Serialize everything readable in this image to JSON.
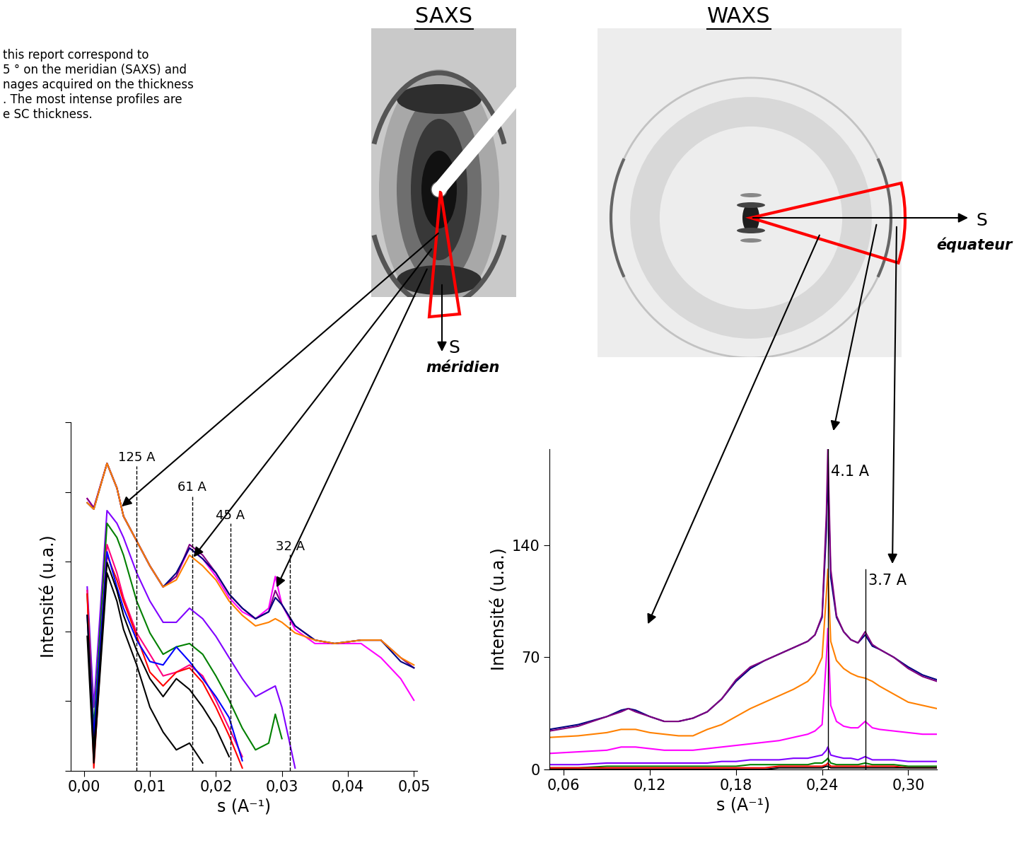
{
  "note": {
    "lines": [
      "this report correspond to",
      "5 ° on the meridian (SAXS) and",
      "nages acquired on the thickness",
      ". The most intense profiles are",
      "e SC thickness."
    ]
  },
  "chart_data": [
    {
      "type": "line",
      "title": "SAXS",
      "direction": {
        "symbol": "S",
        "label": "méridien"
      },
      "xlabel": "s (A⁻¹)",
      "ylabel": "Intensité (u.a.)",
      "log": "y",
      "tick_labels": "x",
      "grid": false,
      "xlim": [
        -0.002,
        0.0505
      ],
      "ylim": [
        1,
        100000
      ],
      "xticks": [
        {
          "value": 0,
          "label": "0,00"
        },
        {
          "value": 0.01,
          "label": "0,01"
        },
        {
          "value": 0.02,
          "label": "0,02"
        },
        {
          "value": 0.03,
          "label": "0,03"
        },
        {
          "value": 0.04,
          "label": "0,04"
        },
        {
          "value": 0.05,
          "label": "0,05"
        }
      ],
      "yticks": [
        1,
        10,
        100,
        1000,
        10000,
        100000
      ],
      "annotations": [
        {
          "text": "125 A",
          "x": 0.008,
          "line_style": "dashed"
        },
        {
          "text": "61 A",
          "x": 0.0164,
          "line_style": "dashed"
        },
        {
          "text": "45 A",
          "x": 0.0222,
          "line_style": "dashed"
        },
        {
          "text": "32 A",
          "x": 0.03125,
          "line_style": "dashed"
        }
      ],
      "x": [
        0.0005,
        0.0015,
        0.0035,
        0.005,
        0.006,
        0.008,
        0.01,
        0.012,
        0.014,
        0.016,
        0.018,
        0.02,
        0.022,
        0.024,
        0.026,
        0.028,
        0.029,
        0.03,
        0.032,
        0.035,
        0.038,
        0.042,
        0.045,
        0.048,
        0.05
      ],
      "series": [
        {
          "color": "#ff00ff",
          "values": [
            8030,
            5930,
            25700,
            11400,
            4480,
            1980,
            870,
            434,
            615,
            1570,
            1100,
            615,
            305,
            191,
            152,
            215,
            615,
            242,
            107,
            67,
            67,
            67,
            42,
            21,
            10.3
          ]
        },
        {
          "color": "#800080",
          "values": [
            8030,
            5930,
            25700,
            11400,
            4480,
            1980,
            870,
            434,
            615,
            1760,
            1240,
            690,
            343,
            215,
            152,
            191,
            386,
            242,
            120,
            75,
            67,
            75,
            75,
            42,
            30
          ]
        },
        {
          "color": "#000080",
          "values": [
            7000,
            5660,
            25700,
            11400,
            4480,
            1980,
            870,
            434,
            690,
            1570,
            1100,
            690,
            343,
            215,
            152,
            191,
            305,
            242,
            120,
            75,
            67,
            75,
            75,
            37,
            30
          ]
        },
        {
          "color": "#ff8000",
          "values": [
            7000,
            5660,
            25700,
            11400,
            4480,
            1980,
            870,
            434,
            547,
            1240,
            870,
            547,
            272,
            170,
            120,
            135,
            152,
            135,
            95,
            75,
            67,
            75,
            75,
            42,
            33
          ]
        },
        {
          "color": "#8000ff",
          "values": [
            434,
            8.2,
            5400,
            3550,
            2220,
            690,
            272,
            135,
            135,
            215,
            152,
            85,
            42,
            21,
            11.6,
            14.7,
            16.5,
            8.2,
            1.1,
            null,
            null,
            null,
            null,
            null,
            null
          ]
        },
        {
          "color": "#008000",
          "values": [
            343,
            4.1,
            3550,
            2220,
            1240,
            272,
            95,
            47,
            60,
            67,
            47,
            23,
            10.3,
            4.1,
            2.0,
            2.5,
            6.5,
            2.9,
            null,
            null,
            null,
            null,
            null,
            null,
            null
          ]
        },
        {
          "color": "#ff0080",
          "values": [
            386,
            2.5,
            1760,
            690,
            305,
            95,
            47,
            23,
            26,
            33,
            23,
            10.3,
            4.1,
            1.6,
            null,
            null,
            null,
            null,
            null,
            null,
            null,
            null,
            null,
            null,
            null
          ]
        },
        {
          "color": "#ff0000",
          "values": [
            343,
            1.1,
            1240,
            547,
            272,
            85,
            26,
            16.5,
            26,
            30,
            18.5,
            8.2,
            3.2,
            1.1,
            null,
            null,
            null,
            null,
            null,
            null,
            null,
            null,
            null,
            null,
            null
          ]
        },
        {
          "color": "#0000ff",
          "values": [
            170,
            3.2,
            1390,
            434,
            215,
            75,
            37,
            33,
            60,
            37,
            21,
            11.6,
            5.8,
            1.4,
            null,
            null,
            null,
            null,
            null,
            null,
            null,
            null,
            null,
            null,
            null
          ]
        },
        {
          "color": "#000000",
          "values": [
            170,
            2.0,
            980,
            386,
            170,
            53,
            21,
            11.6,
            21,
            14.7,
            8.2,
            4.1,
            1.6,
            null,
            null,
            null,
            null,
            null,
            null,
            null,
            null,
            null,
            null,
            null,
            null
          ]
        },
        {
          "color": "#000000",
          "values": [
            85,
            1.3,
            690,
            272,
            107,
            33,
            8.2,
            3.6,
            2.0,
            2.5,
            1.3,
            null,
            null,
            null,
            null,
            null,
            null,
            null,
            null,
            null,
            null,
            null,
            null,
            null,
            null
          ]
        }
      ]
    },
    {
      "type": "line",
      "title": "WAXS",
      "direction": {
        "symbol": "S",
        "label": "équateur"
      },
      "xlabel": "s (A⁻¹)",
      "ylabel": "Intensité (u.a.)",
      "grid": false,
      "xlim": [
        0.05,
        0.32
      ],
      "ylim": [
        0,
        200
      ],
      "xticks": [
        {
          "value": 0.06,
          "label": "0,06"
        },
        {
          "value": 0.12,
          "label": "0,12"
        },
        {
          "value": 0.18,
          "label": "0,18"
        },
        {
          "value": 0.24,
          "label": "0,24"
        },
        {
          "value": 0.3,
          "label": "0,30"
        }
      ],
      "yticks": [
        0,
        70,
        140
      ],
      "annotations": [
        {
          "text": "4.1 A",
          "x": 0.244,
          "line_style": "solid"
        },
        {
          "text": "3.7 A",
          "x": 0.27,
          "line_style": "solid"
        }
      ],
      "x": [
        0.05,
        0.07,
        0.09,
        0.1,
        0.105,
        0.11,
        0.12,
        0.13,
        0.14,
        0.15,
        0.16,
        0.17,
        0.18,
        0.19,
        0.2,
        0.21,
        0.22,
        0.23,
        0.235,
        0.24,
        0.243,
        0.244,
        0.246,
        0.25,
        0.255,
        0.26,
        0.265,
        0.27,
        0.275,
        0.28,
        0.29,
        0.3,
        0.31,
        0.32
      ],
      "series": [
        {
          "color": "#000080",
          "values": [
            25,
            28,
            33,
            37,
            38,
            37,
            33,
            30,
            30,
            32,
            36,
            44,
            55,
            63,
            68,
            72,
            76,
            80,
            84,
            95,
            150,
            185,
            120,
            95,
            86,
            81,
            79,
            84,
            77,
            75,
            70,
            64,
            59,
            56
          ]
        },
        {
          "color": "#800080",
          "values": [
            24,
            27,
            33,
            36,
            38,
            36,
            33,
            30,
            30,
            32,
            36,
            44,
            56,
            64,
            68,
            72,
            76,
            80,
            84,
            96,
            160,
            200,
            125,
            96,
            86,
            81,
            79,
            86,
            78,
            75,
            70,
            63,
            58,
            55
          ]
        },
        {
          "color": "#ff8000",
          "values": [
            20,
            21,
            23,
            25,
            25,
            25,
            23,
            22,
            21,
            21,
            25,
            28,
            33,
            38,
            42,
            46,
            50,
            55,
            60,
            70,
            110,
            125,
            80,
            68,
            63,
            60,
            58,
            57,
            55,
            52,
            47,
            42,
            40,
            38
          ]
        },
        {
          "color": "#ff00ff",
          "values": [
            10,
            11,
            12,
            14,
            14,
            14,
            13,
            12,
            12,
            12,
            13,
            14,
            15,
            16,
            17,
            18,
            20,
            22,
            24,
            28,
            70,
            88,
            40,
            30,
            27,
            26,
            26,
            30,
            26,
            25,
            24,
            23,
            22,
            22
          ]
        },
        {
          "color": "#8000ff",
          "values": [
            3,
            3,
            4,
            4,
            4,
            4,
            4,
            4,
            4,
            4,
            4,
            5,
            5,
            6,
            6,
            6,
            7,
            7,
            8,
            9,
            12,
            14,
            9,
            8,
            7,
            7,
            6,
            8,
            6,
            6,
            6,
            5,
            5,
            5
          ]
        },
        {
          "color": "#008000",
          "values": [
            1,
            1,
            2,
            2,
            2,
            2,
            2,
            2,
            2,
            2,
            2,
            2,
            2,
            3,
            3,
            3,
            3,
            3,
            4,
            4,
            6,
            7,
            4,
            3,
            3,
            3,
            3,
            4,
            3,
            3,
            3,
            2,
            2,
            2
          ]
        },
        {
          "color": "#ff0000",
          "values": [
            1,
            1,
            1,
            1,
            1,
            1,
            1,
            1,
            1,
            1,
            1,
            1,
            1,
            1,
            1,
            2,
            2,
            2,
            2,
            2,
            3,
            4,
            2,
            2,
            2,
            2,
            2,
            2,
            2,
            2,
            2,
            1,
            1,
            1
          ]
        },
        {
          "color": "#000000",
          "values": [
            0,
            0,
            0,
            0,
            0,
            0,
            0,
            0,
            0,
            0,
            0,
            0,
            0,
            0,
            0,
            1,
            1,
            1,
            1,
            1,
            2,
            2,
            1,
            1,
            1,
            1,
            1,
            1,
            1,
            1,
            1,
            1,
            1,
            1
          ]
        }
      ]
    }
  ]
}
